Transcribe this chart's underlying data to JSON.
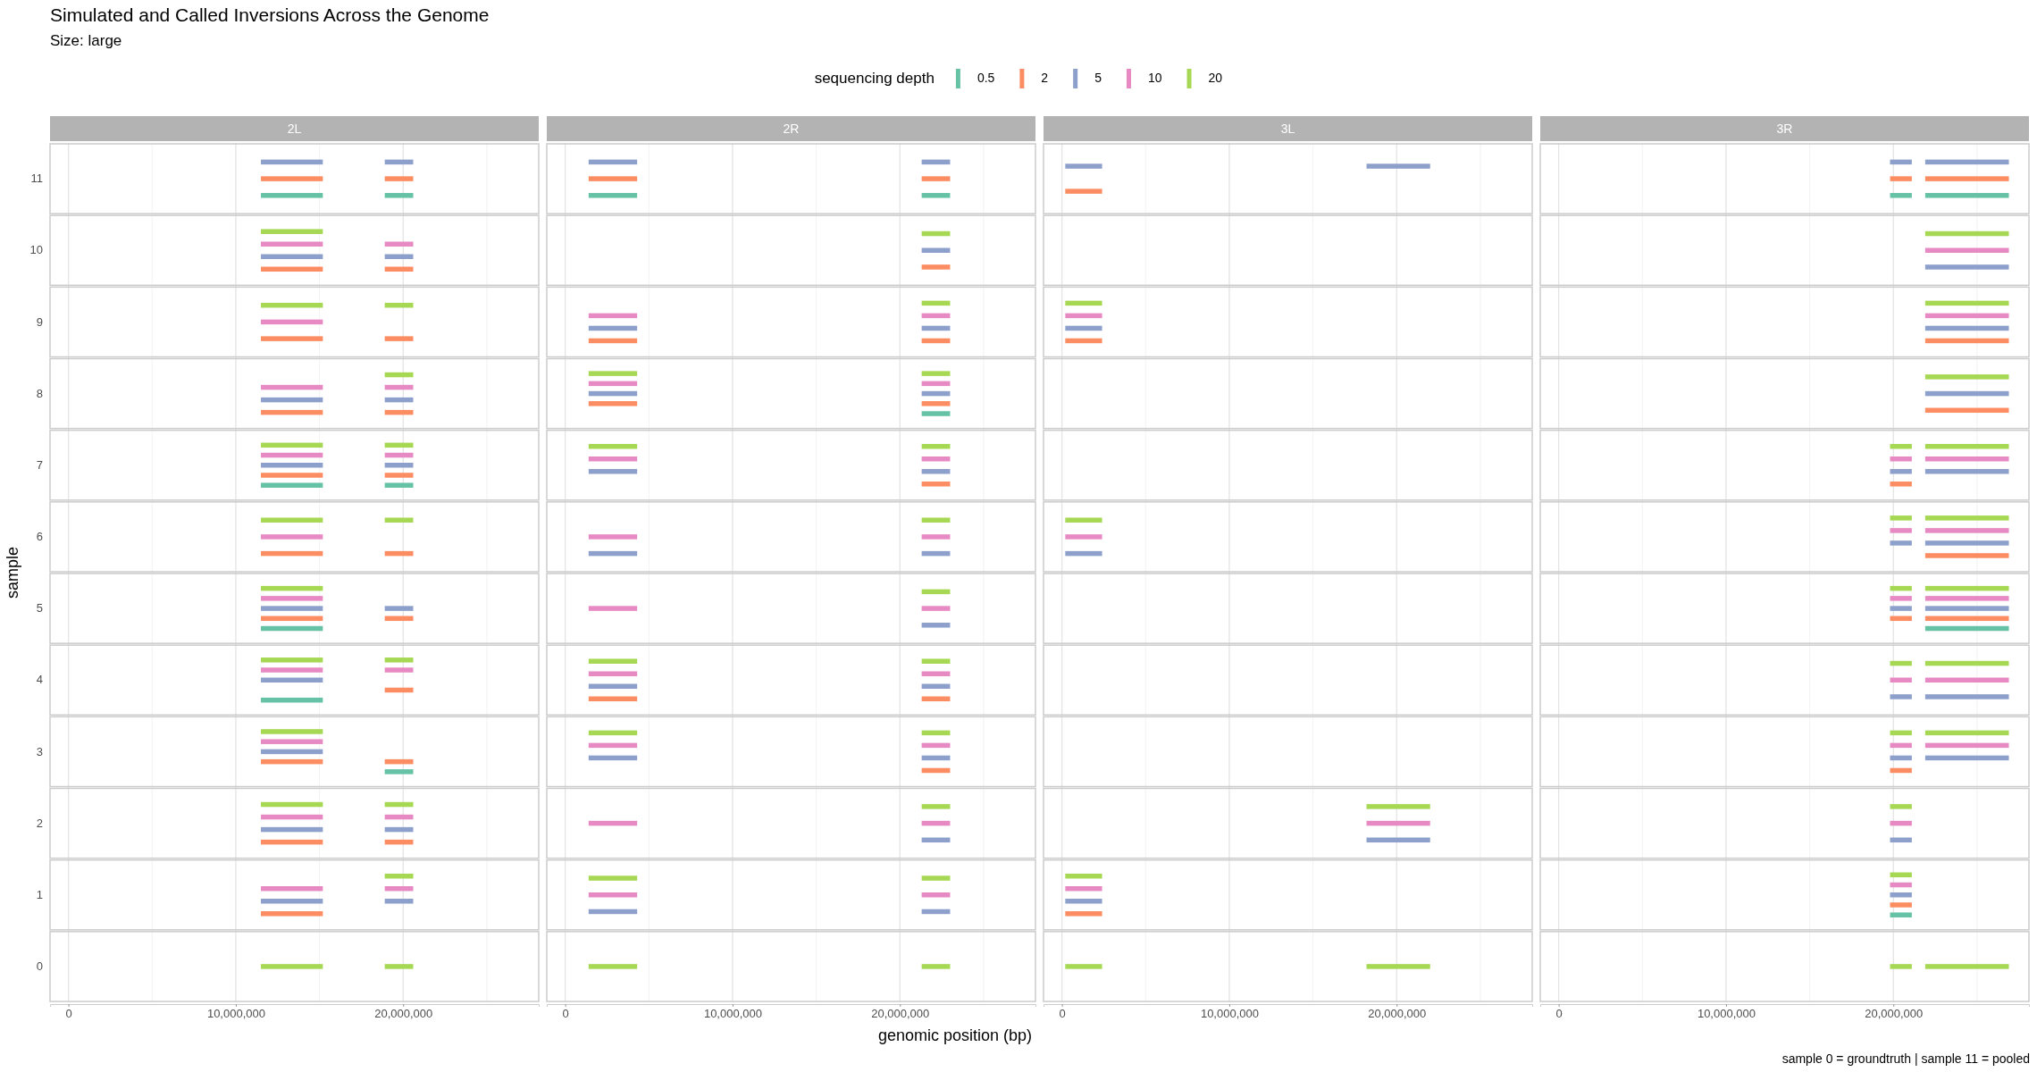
{
  "chart_data": [
    {
      "type": "bar",
      "orientation": "horizontal",
      "title": "2L",
      "ylabel": "sample",
      "legend_title": "sequencing depth",
      "legend": "top",
      "grid": "x",
      "annotations": [
        "Simulated and Called Inversions Across the Genome",
        "Size: large"
      ],
      "categories": [
        "11",
        "10",
        "9",
        "8",
        "7",
        "6",
        "5",
        "4",
        "3",
        "2",
        "1",
        "0"
      ],
      "xlim": [
        -1100000,
        28100000
      ],
      "xticks": [
        {
          "value": 0,
          "label": "0"
        },
        {
          "value": 5000000,
          "label": null
        },
        {
          "value": 10000000,
          "label": "10,000,000"
        },
        {
          "value": 15000000,
          "label": null
        },
        {
          "value": 20000000,
          "label": "20,000,000"
        },
        {
          "value": 25000000,
          "label": null
        }
      ],
      "series": [
        {
          "name": "0.5",
          "color": "#66c2a5",
          "base": [
            11500000,
            null,
            null,
            null,
            11500000,
            null,
            11500000,
            11500000,
            null,
            null,
            null,
            null
          ],
          "values": [
            3700000,
            null,
            null,
            null,
            3700000,
            null,
            3700000,
            3700000,
            null,
            null,
            null,
            null
          ]
        },
        {
          "color": "#66c2a5",
          "base": [
            18900000,
            null,
            null,
            null,
            18900000,
            null,
            null,
            null,
            18900000,
            null,
            null,
            null
          ],
          "values": [
            1700000,
            null,
            null,
            null,
            1700000,
            null,
            null,
            null,
            1700000,
            null,
            null,
            null
          ]
        },
        {
          "name": "2",
          "color": "#fc8d62",
          "base": [
            11500000,
            11500000,
            11500000,
            11500000,
            11500000,
            11500000,
            11500000,
            null,
            11500000,
            11500000,
            11500000,
            null
          ],
          "values": [
            3700000,
            3700000,
            3700000,
            3700000,
            3700000,
            3700000,
            3700000,
            null,
            3700000,
            3700000,
            3700000,
            null
          ]
        },
        {
          "color": "#fc8d62",
          "base": [
            18900000,
            18900000,
            18900000,
            18900000,
            18900000,
            18900000,
            18900000,
            18900000,
            18900000,
            18900000,
            null,
            null
          ],
          "values": [
            1700000,
            1700000,
            1700000,
            1700000,
            1700000,
            1700000,
            1700000,
            1700000,
            1700000,
            1700000,
            null,
            null
          ]
        },
        {
          "name": "5",
          "color": "#8da0cb",
          "base": [
            11500000,
            11500000,
            null,
            11500000,
            11500000,
            null,
            11500000,
            11500000,
            11500000,
            11500000,
            11500000,
            null
          ],
          "values": [
            3700000,
            3700000,
            null,
            3700000,
            3700000,
            null,
            3700000,
            3700000,
            3700000,
            3700000,
            3700000,
            null
          ]
        },
        {
          "color": "#8da0cb",
          "base": [
            18900000,
            18900000,
            null,
            18900000,
            18900000,
            null,
            18900000,
            null,
            null,
            18900000,
            18900000,
            null
          ],
          "values": [
            1700000,
            1700000,
            null,
            1700000,
            1700000,
            null,
            1700000,
            null,
            null,
            1700000,
            1700000,
            null
          ]
        },
        {
          "name": "10",
          "color": "#e78ac3",
          "base": [
            null,
            11500000,
            11500000,
            11500000,
            11500000,
            11500000,
            11500000,
            11500000,
            11500000,
            11500000,
            11500000,
            null
          ],
          "values": [
            null,
            3700000,
            3700000,
            3700000,
            3700000,
            3700000,
            3700000,
            3700000,
            3700000,
            3700000,
            3700000,
            null
          ]
        },
        {
          "color": "#e78ac3",
          "base": [
            null,
            18900000,
            null,
            18900000,
            18900000,
            null,
            null,
            18900000,
            null,
            18900000,
            18900000,
            null
          ],
          "values": [
            null,
            1700000,
            null,
            1700000,
            1700000,
            null,
            null,
            1700000,
            null,
            1700000,
            1700000,
            null
          ]
        },
        {
          "name": "20",
          "color": "#a6d854",
          "base": [
            null,
            11500000,
            11500000,
            null,
            11500000,
            11500000,
            11500000,
            11500000,
            11500000,
            11500000,
            null,
            11500000
          ],
          "values": [
            null,
            3700000,
            3700000,
            null,
            3700000,
            3700000,
            3700000,
            3700000,
            3700000,
            3700000,
            null,
            3700000
          ]
        },
        {
          "color": "#a6d854",
          "base": [
            null,
            null,
            18900000,
            18900000,
            18900000,
            18900000,
            null,
            18900000,
            null,
            18900000,
            18900000,
            18900000
          ],
          "values": [
            null,
            null,
            1700000,
            1700000,
            1700000,
            1700000,
            null,
            1700000,
            null,
            1700000,
            1700000,
            1700000
          ]
        }
      ]
    },
    {
      "type": "bar",
      "orientation": "horizontal",
      "title": "2R",
      "xlabel": "genomic position (bp)",
      "grid": "x",
      "tick_labels": "x",
      "categories": [
        "11",
        "10",
        "9",
        "8",
        "7",
        "6",
        "5",
        "4",
        "3",
        "2",
        "1",
        "0"
      ],
      "xlim": [
        -1100000,
        28100000
      ],
      "xticks": [
        {
          "value": 0,
          "label": "0"
        },
        {
          "value": 5000000,
          "label": null
        },
        {
          "value": 10000000,
          "label": "10,000,000"
        },
        {
          "value": 15000000,
          "label": null
        },
        {
          "value": 20000000,
          "label": "20,000,000"
        },
        {
          "value": 25000000,
          "label": null
        }
      ],
      "series": [
        {
          "color": "#66c2a5",
          "base": [
            1400000,
            null,
            null,
            null,
            null,
            null,
            null,
            null,
            null,
            null,
            null,
            null
          ],
          "values": [
            2900000,
            null,
            null,
            null,
            null,
            null,
            null,
            null,
            null,
            null,
            null,
            null
          ]
        },
        {
          "color": "#66c2a5",
          "base": [
            21300000,
            null,
            null,
            21300000,
            null,
            null,
            null,
            null,
            null,
            null,
            null,
            null
          ],
          "values": [
            1700000,
            null,
            null,
            1700000,
            null,
            null,
            null,
            null,
            null,
            null,
            null,
            null
          ]
        },
        {
          "color": "#fc8d62",
          "base": [
            1400000,
            null,
            1400000,
            1400000,
            null,
            null,
            null,
            1400000,
            null,
            null,
            null,
            null
          ],
          "values": [
            2900000,
            null,
            2900000,
            2900000,
            null,
            null,
            null,
            2900000,
            null,
            null,
            null,
            null
          ]
        },
        {
          "color": "#fc8d62",
          "base": [
            21300000,
            21300000,
            21300000,
            21300000,
            21300000,
            null,
            null,
            21300000,
            21300000,
            null,
            null,
            null
          ],
          "values": [
            1700000,
            1700000,
            1700000,
            1700000,
            1700000,
            null,
            null,
            1700000,
            1700000,
            null,
            null,
            null
          ]
        },
        {
          "color": "#8da0cb",
          "base": [
            1400000,
            null,
            1400000,
            1400000,
            1400000,
            1400000,
            null,
            1400000,
            1400000,
            null,
            1400000,
            null
          ],
          "values": [
            2900000,
            null,
            2900000,
            2900000,
            2900000,
            2900000,
            null,
            2900000,
            2900000,
            null,
            2900000,
            null
          ]
        },
        {
          "color": "#8da0cb",
          "base": [
            21300000,
            21300000,
            21300000,
            21300000,
            21300000,
            21300000,
            21300000,
            21300000,
            21300000,
            21300000,
            21300000,
            null
          ],
          "values": [
            1700000,
            1700000,
            1700000,
            1700000,
            1700000,
            1700000,
            1700000,
            1700000,
            1700000,
            1700000,
            1700000,
            null
          ]
        },
        {
          "color": "#e78ac3",
          "base": [
            null,
            null,
            1400000,
            1400000,
            1400000,
            1400000,
            1400000,
            1400000,
            1400000,
            1400000,
            1400000,
            null
          ],
          "values": [
            null,
            null,
            2900000,
            2900000,
            2900000,
            2900000,
            2900000,
            2900000,
            2900000,
            2900000,
            2900000,
            null
          ]
        },
        {
          "color": "#e78ac3",
          "base": [
            null,
            null,
            21300000,
            21300000,
            21300000,
            21300000,
            21300000,
            21300000,
            21300000,
            21300000,
            21300000,
            null
          ],
          "values": [
            null,
            null,
            1700000,
            1700000,
            1700000,
            1700000,
            1700000,
            1700000,
            1700000,
            1700000,
            1700000,
            null
          ]
        },
        {
          "color": "#a6d854",
          "base": [
            null,
            null,
            null,
            1400000,
            1400000,
            null,
            null,
            1400000,
            1400000,
            null,
            1400000,
            1400000
          ],
          "values": [
            null,
            null,
            null,
            2900000,
            2900000,
            null,
            null,
            2900000,
            2900000,
            null,
            2900000,
            2900000
          ]
        },
        {
          "color": "#a6d854",
          "base": [
            null,
            21300000,
            21300000,
            21300000,
            21300000,
            21300000,
            21300000,
            21300000,
            21300000,
            21300000,
            21300000,
            21300000
          ],
          "values": [
            null,
            1700000,
            1700000,
            1700000,
            1700000,
            1700000,
            1700000,
            1700000,
            1700000,
            1700000,
            1700000,
            1700000
          ]
        }
      ]
    },
    {
      "type": "bar",
      "orientation": "horizontal",
      "title": "3L",
      "grid": "x",
      "tick_labels": "x",
      "categories": [
        "11",
        "10",
        "9",
        "8",
        "7",
        "6",
        "5",
        "4",
        "3",
        "2",
        "1",
        "0"
      ],
      "xlim": [
        -1100000,
        28100000
      ],
      "xticks": [
        {
          "value": 0,
          "label": "0"
        },
        {
          "value": 5000000,
          "label": null
        },
        {
          "value": 10000000,
          "label": "10,000,000"
        },
        {
          "value": 15000000,
          "label": null
        },
        {
          "value": 20000000,
          "label": "20,000,000"
        },
        {
          "value": 25000000,
          "label": null
        }
      ],
      "series": [
        {
          "color": "#fc8d62",
          "base": [
            200000,
            null,
            200000,
            null,
            null,
            null,
            null,
            null,
            null,
            null,
            200000,
            null
          ],
          "values": [
            2200000,
            null,
            2200000,
            null,
            null,
            null,
            null,
            null,
            null,
            null,
            2200000,
            null
          ]
        },
        {
          "color": "#8da0cb",
          "base": [
            200000,
            null,
            200000,
            null,
            null,
            200000,
            null,
            null,
            null,
            null,
            200000,
            null
          ],
          "values": [
            2200000,
            null,
            2200000,
            null,
            null,
            2200000,
            null,
            null,
            null,
            null,
            2200000,
            null
          ]
        },
        {
          "color": "#8da0cb",
          "base": [
            18200000,
            null,
            null,
            null,
            null,
            null,
            null,
            null,
            null,
            18200000,
            null,
            null
          ],
          "values": [
            3800000,
            null,
            null,
            null,
            null,
            null,
            null,
            null,
            null,
            3800000,
            null,
            null
          ]
        },
        {
          "color": "#e78ac3",
          "base": [
            null,
            null,
            200000,
            null,
            null,
            200000,
            null,
            null,
            null,
            null,
            200000,
            null
          ],
          "values": [
            null,
            null,
            2200000,
            null,
            null,
            2200000,
            null,
            null,
            null,
            null,
            2200000,
            null
          ]
        },
        {
          "color": "#e78ac3",
          "base": [
            null,
            null,
            null,
            null,
            null,
            null,
            null,
            null,
            null,
            18200000,
            null,
            null
          ],
          "values": [
            null,
            null,
            null,
            null,
            null,
            null,
            null,
            null,
            null,
            3800000,
            null,
            null
          ]
        },
        {
          "color": "#a6d854",
          "base": [
            null,
            null,
            200000,
            null,
            null,
            200000,
            null,
            null,
            null,
            null,
            200000,
            200000
          ],
          "values": [
            null,
            null,
            2200000,
            null,
            null,
            2200000,
            null,
            null,
            null,
            null,
            2200000,
            2200000
          ]
        },
        {
          "color": "#a6d854",
          "base": [
            null,
            null,
            null,
            null,
            null,
            null,
            null,
            null,
            null,
            18200000,
            null,
            18200000
          ],
          "values": [
            null,
            null,
            null,
            null,
            null,
            null,
            null,
            null,
            null,
            3800000,
            null,
            3800000
          ]
        }
      ]
    },
    {
      "type": "bar",
      "orientation": "horizontal",
      "title": "3R",
      "grid": "x",
      "tick_labels": "x",
      "annotations": [
        "sample 0 = groundtruth | sample 11 = pooled"
      ],
      "categories": [
        "11",
        "10",
        "9",
        "8",
        "7",
        "6",
        "5",
        "4",
        "3",
        "2",
        "1",
        "0"
      ],
      "xlim": [
        -1100000,
        28100000
      ],
      "xticks": [
        {
          "value": 0,
          "label": "0"
        },
        {
          "value": 5000000,
          "label": null
        },
        {
          "value": 10000000,
          "label": "10,000,000"
        },
        {
          "value": 15000000,
          "label": null
        },
        {
          "value": 20000000,
          "label": "20,000,000"
        },
        {
          "value": 25000000,
          "label": null
        }
      ],
      "series": [
        {
          "color": "#66c2a5",
          "base": [
            19800000,
            null,
            null,
            null,
            null,
            null,
            null,
            null,
            null,
            null,
            19800000,
            null
          ],
          "values": [
            1300000,
            null,
            null,
            null,
            null,
            null,
            null,
            null,
            null,
            null,
            1300000,
            null
          ]
        },
        {
          "color": "#66c2a5",
          "base": [
            21900000,
            null,
            null,
            null,
            null,
            null,
            21900000,
            null,
            null,
            null,
            null,
            null
          ],
          "values": [
            5000000,
            null,
            null,
            null,
            null,
            null,
            5000000,
            null,
            null,
            null,
            null,
            null
          ]
        },
        {
          "color": "#fc8d62",
          "base": [
            19800000,
            null,
            null,
            null,
            19800000,
            null,
            19800000,
            null,
            19800000,
            null,
            19800000,
            null
          ],
          "values": [
            1300000,
            null,
            null,
            null,
            1300000,
            null,
            1300000,
            null,
            1300000,
            null,
            1300000,
            null
          ]
        },
        {
          "color": "#fc8d62",
          "base": [
            21900000,
            null,
            21900000,
            21900000,
            null,
            21900000,
            21900000,
            null,
            null,
            null,
            null,
            null
          ],
          "values": [
            5000000,
            null,
            5000000,
            5000000,
            null,
            5000000,
            5000000,
            null,
            null,
            null,
            null,
            null
          ]
        },
        {
          "color": "#8da0cb",
          "base": [
            19800000,
            null,
            null,
            null,
            19800000,
            19800000,
            19800000,
            19800000,
            19800000,
            19800000,
            19800000,
            null
          ],
          "values": [
            1300000,
            null,
            null,
            null,
            1300000,
            1300000,
            1300000,
            1300000,
            1300000,
            1300000,
            1300000,
            null
          ]
        },
        {
          "color": "#8da0cb",
          "base": [
            21900000,
            21900000,
            21900000,
            21900000,
            21900000,
            21900000,
            21900000,
            21900000,
            21900000,
            null,
            null,
            null
          ],
          "values": [
            5000000,
            5000000,
            5000000,
            5000000,
            5000000,
            5000000,
            5000000,
            5000000,
            5000000,
            null,
            null,
            null
          ]
        },
        {
          "color": "#e78ac3",
          "base": [
            null,
            null,
            null,
            null,
            19800000,
            19800000,
            19800000,
            19800000,
            19800000,
            19800000,
            19800000,
            null
          ],
          "values": [
            null,
            null,
            null,
            null,
            1300000,
            1300000,
            1300000,
            1300000,
            1300000,
            1300000,
            1300000,
            null
          ]
        },
        {
          "color": "#e78ac3",
          "base": [
            null,
            21900000,
            21900000,
            null,
            21900000,
            21900000,
            21900000,
            21900000,
            21900000,
            null,
            null,
            null
          ],
          "values": [
            null,
            5000000,
            5000000,
            null,
            5000000,
            5000000,
            5000000,
            5000000,
            5000000,
            null,
            null,
            null
          ]
        },
        {
          "color": "#a6d854",
          "base": [
            null,
            null,
            null,
            null,
            19800000,
            19800000,
            19800000,
            19800000,
            19800000,
            19800000,
            19800000,
            19800000
          ],
          "values": [
            null,
            null,
            null,
            null,
            1300000,
            1300000,
            1300000,
            1300000,
            1300000,
            1300000,
            1300000,
            1300000
          ]
        },
        {
          "color": "#a6d854",
          "base": [
            null,
            21900000,
            21900000,
            21900000,
            21900000,
            21900000,
            21900000,
            21900000,
            21900000,
            null,
            null,
            21900000
          ],
          "values": [
            null,
            5000000,
            5000000,
            5000000,
            5000000,
            5000000,
            5000000,
            5000000,
            5000000,
            null,
            null,
            5000000
          ]
        }
      ]
    }
  ]
}
